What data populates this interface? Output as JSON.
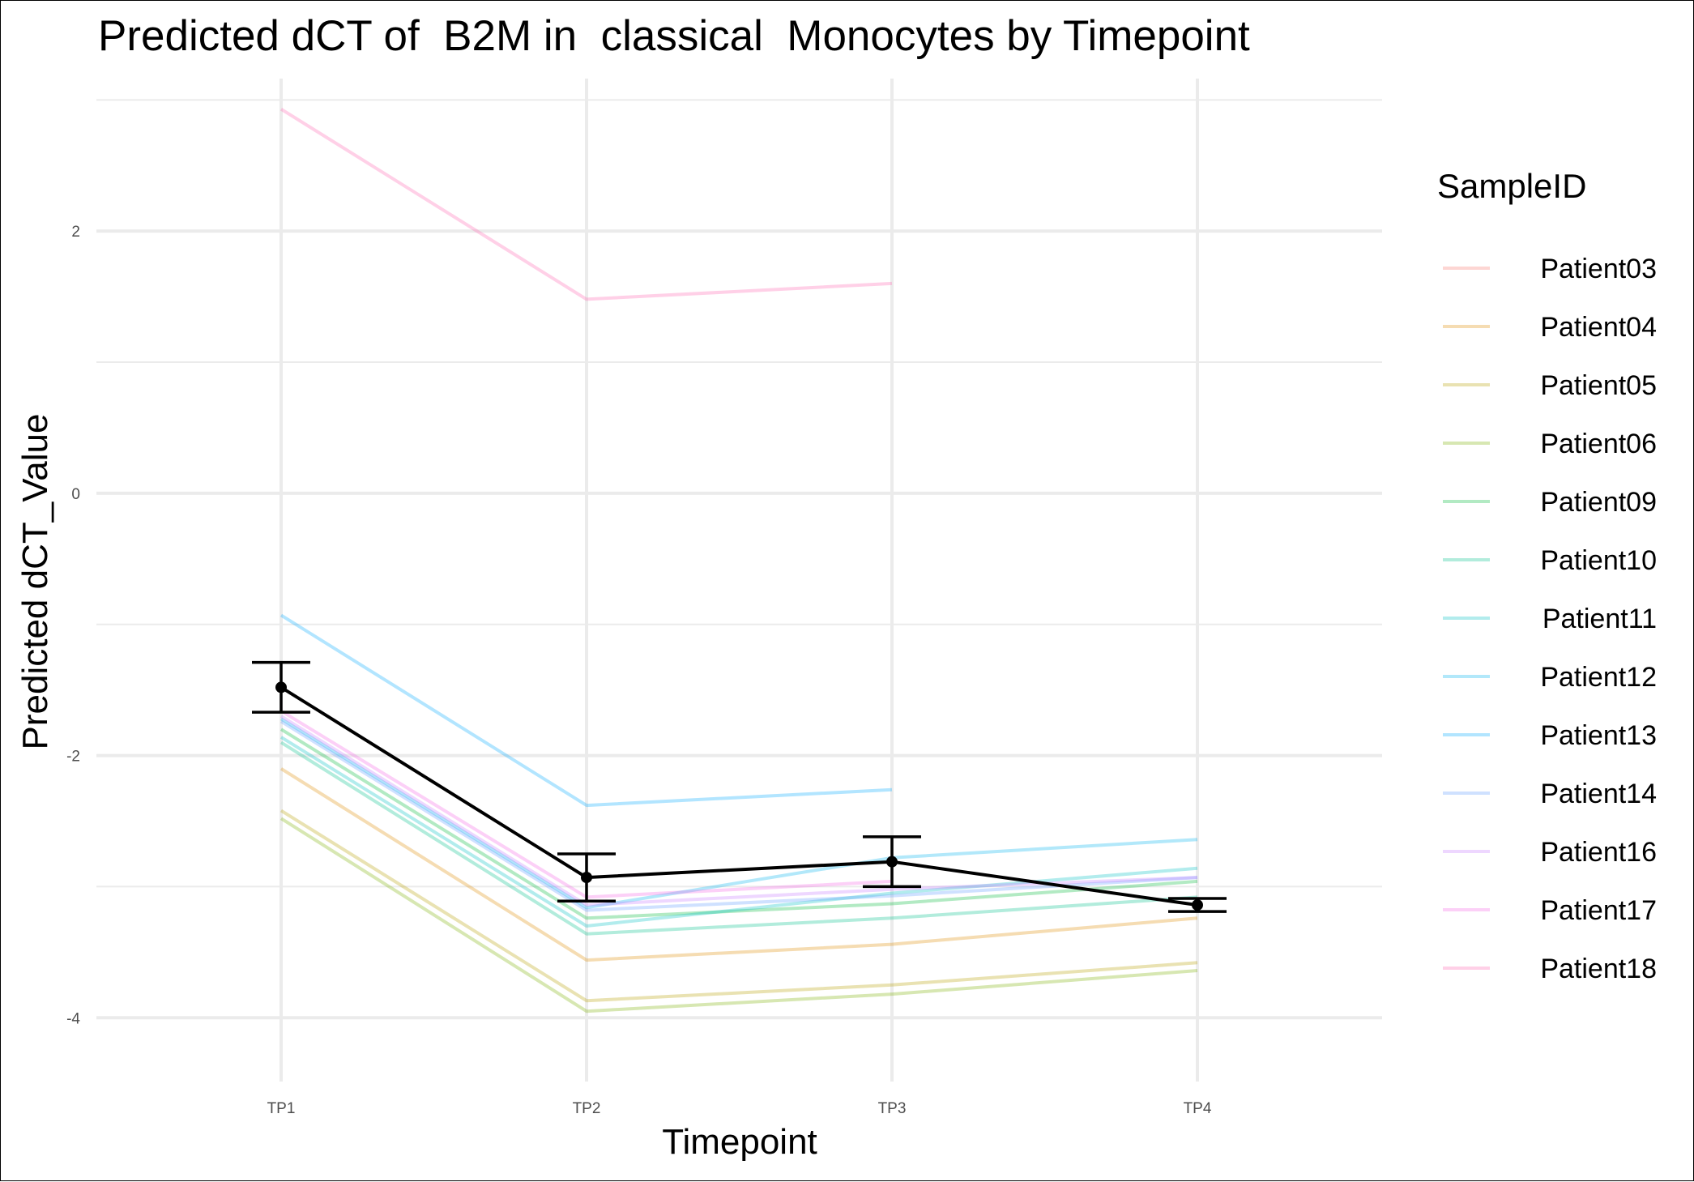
{
  "chart_data": {
    "type": "line",
    "title": "Predicted dCT of  B2M in  classical  Monocytes by Timepoint",
    "xlabel": "Timepoint",
    "ylabel": "Predicted dCT_Value",
    "categories": [
      "TP1",
      "TP2",
      "TP3",
      "TP4"
    ],
    "ylim": [
      -4.4,
      3.2
    ],
    "yticks": [
      -4,
      -2,
      0,
      2
    ],
    "ytick_labels": [
      "-4",
      "-2",
      "0",
      "2"
    ],
    "grid": true,
    "legend": {
      "title": "SampleID",
      "position": "right"
    },
    "series": [
      {
        "name": "Patient03",
        "color": "#F8766D",
        "values": [
          null,
          null,
          null,
          null
        ]
      },
      {
        "name": "Patient04",
        "color": "#DE8C00",
        "values": [
          -2.1,
          -3.56,
          -3.44,
          -3.24
        ]
      },
      {
        "name": "Patient05",
        "color": "#B79F00",
        "values": [
          -2.42,
          -3.87,
          -3.75,
          -3.58
        ]
      },
      {
        "name": "Patient06",
        "color": "#7CAE00",
        "values": [
          -2.48,
          -3.95,
          -3.82,
          -3.64
        ]
      },
      {
        "name": "Patient09",
        "color": "#00BA38",
        "values": [
          -1.8,
          -3.24,
          -3.13,
          -2.96
        ]
      },
      {
        "name": "Patient10",
        "color": "#00C08B",
        "values": [
          -1.9,
          -3.36,
          -3.24,
          -3.08
        ]
      },
      {
        "name": "Patient11",
        "color": "#00BFC4",
        "values": [
          -1.86,
          -3.3,
          -3.05,
          -2.86
        ]
      },
      {
        "name": "Patient12",
        "color": "#00B4F0",
        "values": [
          -1.72,
          -3.16,
          -2.78,
          -2.64
        ]
      },
      {
        "name": "Patient13",
        "color": "#00A9FF",
        "values": [
          -0.93,
          -2.38,
          -2.26,
          null
        ]
      },
      {
        "name": "Patient14",
        "color": "#619CFF",
        "values": [
          -1.74,
          -3.18,
          -3.07,
          -2.93
        ]
      },
      {
        "name": "Patient16",
        "color": "#C77CFF",
        "values": [
          -1.7,
          -3.14,
          -3.02,
          -2.93
        ]
      },
      {
        "name": "Patient17",
        "color": "#F564E3",
        "values": [
          -1.66,
          -3.08,
          -2.96,
          null
        ]
      },
      {
        "name": "Patient18",
        "color": "#FF64B0",
        "values": [
          2.93,
          1.48,
          1.6,
          null
        ]
      }
    ],
    "mean": {
      "values": [
        -1.48,
        -2.93,
        -2.81,
        -3.14
      ],
      "error_low": [
        -1.67,
        -3.11,
        -3.0,
        -3.19
      ],
      "error_high": [
        -1.29,
        -2.75,
        -2.62,
        -3.09
      ],
      "color": "#000000"
    }
  }
}
